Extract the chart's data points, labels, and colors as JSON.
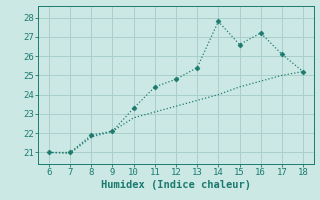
{
  "x_line1": [
    6,
    7,
    8,
    9,
    10,
    11,
    12,
    13,
    14,
    15,
    16,
    17,
    18
  ],
  "y_line1": [
    21.0,
    21.0,
    21.9,
    22.1,
    23.3,
    24.4,
    24.8,
    25.4,
    27.8,
    26.6,
    27.2,
    26.1,
    25.2
  ],
  "x_line2": [
    6,
    7,
    8,
    9,
    10,
    11,
    12,
    13,
    14,
    15,
    16,
    17,
    18
  ],
  "y_line2": [
    21.0,
    20.95,
    21.8,
    22.1,
    22.8,
    23.1,
    23.4,
    23.7,
    24.0,
    24.4,
    24.7,
    25.0,
    25.2
  ],
  "line_color": "#1a7a6e",
  "bg_color": "#cce8e4",
  "grid_color": "#aad0cb",
  "xlabel": "Humidex (Indice chaleur)",
  "xlim": [
    5.5,
    18.5
  ],
  "ylim": [
    20.4,
    28.6
  ],
  "xticks": [
    6,
    7,
    8,
    9,
    10,
    11,
    12,
    13,
    14,
    15,
    16,
    17,
    18
  ],
  "yticks": [
    21,
    22,
    23,
    24,
    25,
    26,
    27,
    28
  ],
  "xlabel_fontsize": 7.5,
  "tick_fontsize": 6.5
}
